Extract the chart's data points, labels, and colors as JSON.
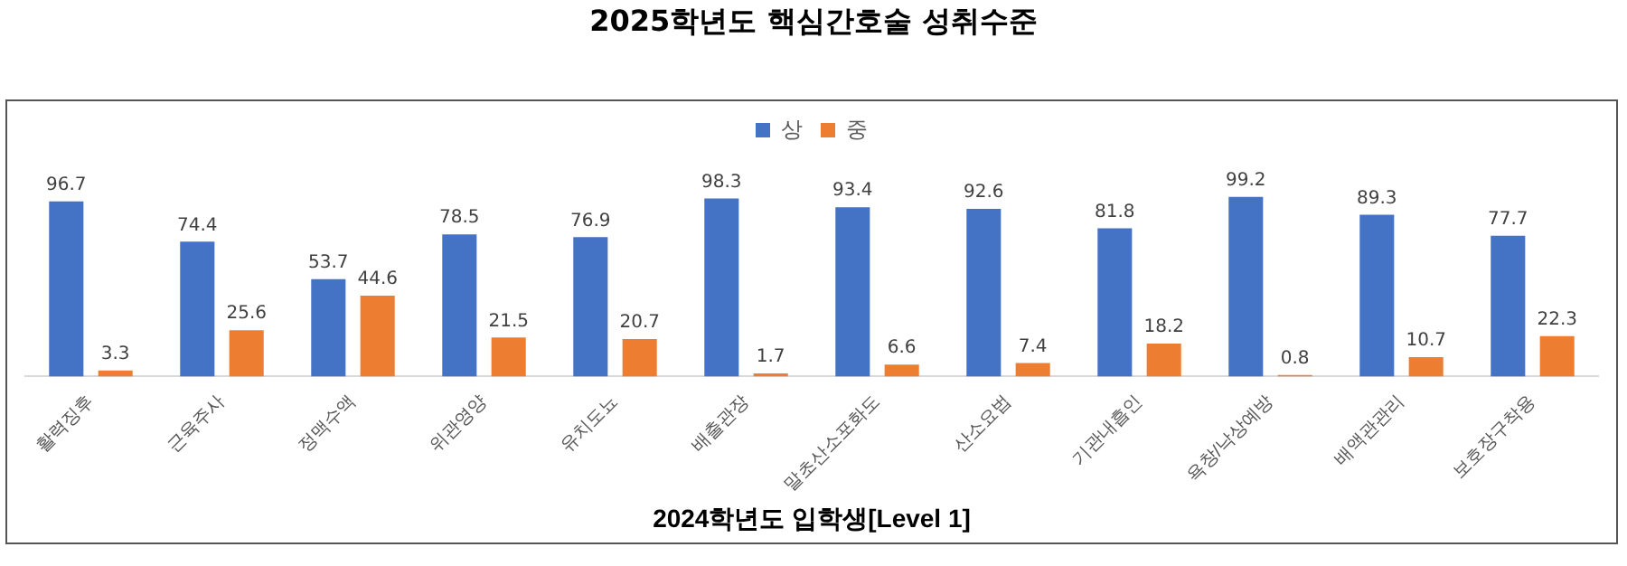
{
  "chart_data": {
    "type": "bar",
    "title": "2025학년도 핵심간호술 성취수준",
    "xlabel": "2024학년도 입학생[Level 1]",
    "categories": [
      "활력징후",
      "근육주사",
      "정맥수액",
      "위관영양",
      "유치도뇨",
      "배출관장",
      "말초산소포화도",
      "산소요법",
      "기관내흡인",
      "욕창/낙상예방",
      "배액관관리",
      "보호장구착용"
    ],
    "series": [
      {
        "name": "상",
        "color": "#4472c4",
        "values": [
          96.7,
          74.4,
          53.7,
          78.5,
          76.9,
          98.3,
          93.4,
          92.6,
          81.8,
          99.2,
          89.3,
          77.7
        ]
      },
      {
        "name": "중",
        "color": "#ed7d31",
        "values": [
          3.3,
          25.6,
          44.6,
          21.5,
          20.7,
          1.7,
          6.6,
          7.4,
          18.2,
          0.8,
          10.7,
          22.3
        ]
      }
    ],
    "data_labels": true,
    "legend": "top",
    "grid": false
  }
}
